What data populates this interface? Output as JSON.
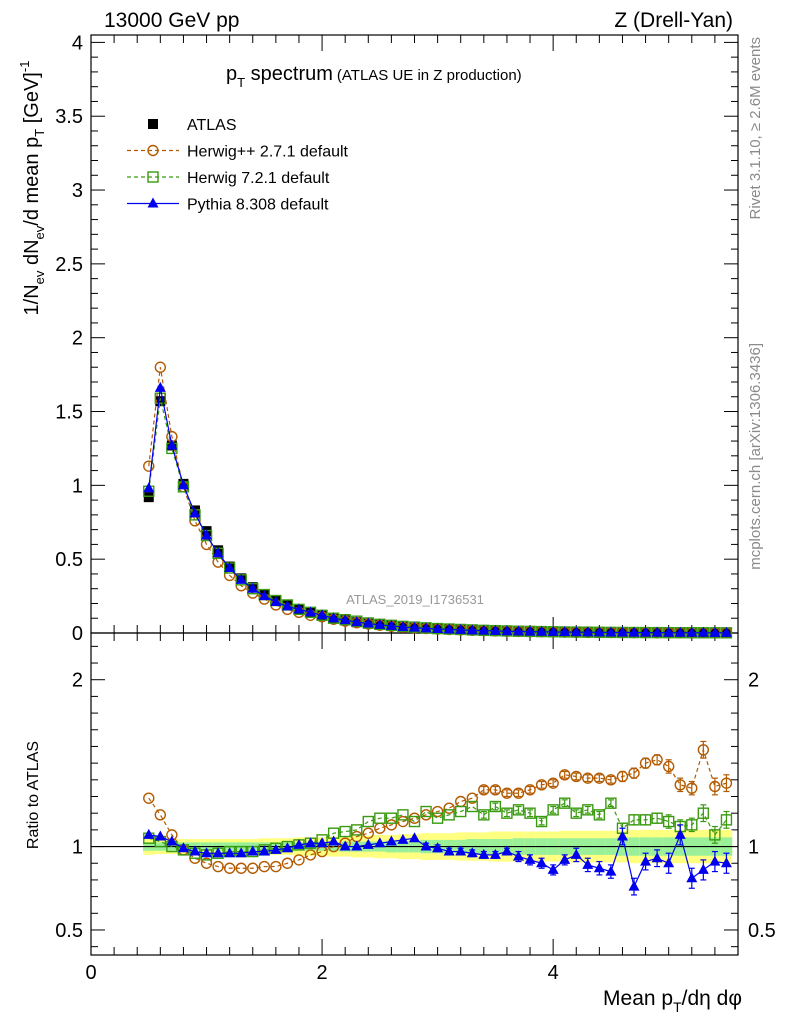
{
  "header": {
    "left": "13000 GeV pp",
    "right": "Z (Drell-Yan)"
  },
  "plot_title": {
    "main_p": "p",
    "main_sub": "T",
    "main_rest": " spectrum",
    "paren": "(ATLAS UE in Z production)"
  },
  "side_labels": {
    "rivet": "Rivet 3.1.10, ≥ 2.6M events",
    "mcplots": "mcplots.cern.ch [arXiv:1306.3436]"
  },
  "analysis_id": "ATLAS_2019_I1736531",
  "axes": {
    "ylabel_main": "1/N_ev dN_ev/d mean p_T [GeV]^-1",
    "ylabel_ratio": "Ratio to ATLAS",
    "xlabel": "Mean p_T/dη dφ"
  },
  "chart_data": [
    {
      "type": "scatter",
      "panel": "main",
      "xlim": [
        0,
        5.6
      ],
      "ylim": [
        0,
        4.05
      ],
      "xticks": [
        0,
        2,
        4
      ],
      "yticks": [
        0,
        0.5,
        1,
        1.5,
        2,
        2.5,
        3,
        3.5,
        4
      ],
      "ytick_labels": [
        "0",
        "0.5",
        "1",
        "1.5",
        "2",
        "2.5",
        "3",
        "3.5",
        "4"
      ],
      "legend_position": "top-left",
      "x": [
        0.5,
        0.6,
        0.7,
        0.8,
        0.9,
        1.0,
        1.1,
        1.2,
        1.3,
        1.4,
        1.5,
        1.6,
        1.7,
        1.8,
        1.9,
        2.0,
        2.1,
        2.2,
        2.3,
        2.4,
        2.5,
        2.6,
        2.7,
        2.8,
        2.9,
        3.0,
        3.1,
        3.2,
        3.3,
        3.4,
        3.5,
        3.6,
        3.7,
        3.8,
        3.9,
        4.0,
        4.1,
        4.2,
        4.3,
        4.4,
        4.5,
        4.6,
        4.7,
        4.8,
        4.9,
        5.0,
        5.1,
        5.2,
        5.3,
        5.4,
        5.5
      ],
      "series": [
        {
          "name": "ATLAS",
          "color": "#000000",
          "marker": "square-filled",
          "values": [
            0.92,
            1.57,
            1.27,
            1.01,
            0.83,
            0.69,
            0.56,
            0.45,
            0.37,
            0.31,
            0.26,
            0.22,
            0.19,
            0.16,
            0.14,
            0.12,
            0.1,
            0.085,
            0.073,
            0.063,
            0.054,
            0.047,
            0.041,
            0.036,
            0.031,
            0.027,
            0.024,
            0.021,
            0.018,
            0.016,
            0.014,
            0.012,
            0.011,
            0.0095,
            0.0083,
            0.0073,
            0.0064,
            0.0056,
            0.0049,
            0.0043,
            0.0038,
            0.0033,
            0.0029,
            0.0026,
            0.0023,
            0.002,
            0.0018,
            0.0016,
            0.0014,
            0.0012,
            0.0011
          ]
        },
        {
          "name": "Herwig++ 2.7.1 default",
          "color": "#b35a00",
          "marker": "circle-open",
          "dash": "4,3",
          "values": [
            1.13,
            1.8,
            1.33,
            0.99,
            0.76,
            0.6,
            0.48,
            0.39,
            0.32,
            0.27,
            0.23,
            0.19,
            0.16,
            0.14,
            0.12,
            0.11,
            0.093,
            0.081,
            0.07,
            0.061,
            0.053,
            0.046,
            0.04,
            0.035,
            0.031,
            0.027,
            0.024,
            0.021,
            0.018,
            0.016,
            0.014,
            0.012,
            0.011,
            0.0095,
            0.0083,
            0.0073,
            0.0064,
            0.0056,
            0.0049,
            0.0043,
            0.0038,
            0.0033,
            0.0029,
            0.0026,
            0.0023,
            0.002,
            0.0018,
            0.0016,
            0.0014,
            0.0012,
            0.0011
          ]
        },
        {
          "name": "Herwig 7.2.1 default",
          "color": "#3a9a10",
          "marker": "square-open",
          "dash": "4,3",
          "values": [
            0.96,
            1.59,
            1.25,
            0.99,
            0.8,
            0.66,
            0.54,
            0.44,
            0.36,
            0.3,
            0.26,
            0.22,
            0.19,
            0.16,
            0.14,
            0.12,
            0.1,
            0.09,
            0.08,
            0.068,
            0.059,
            0.052,
            0.045,
            0.04,
            0.035,
            0.03,
            0.027,
            0.024,
            0.021,
            0.018,
            0.016,
            0.014,
            0.012,
            0.011,
            0.0095,
            0.0083,
            0.0073,
            0.0064,
            0.0056,
            0.0049,
            0.0043,
            0.0038,
            0.0033,
            0.0029,
            0.0026,
            0.0023,
            0.002,
            0.0018,
            0.0016,
            0.0014,
            0.0012
          ]
        },
        {
          "name": "Pythia 8.308 default",
          "color": "#0000ee",
          "marker": "triangle-filled",
          "values": [
            0.98,
            1.66,
            1.27,
            1.0,
            0.81,
            0.66,
            0.54,
            0.44,
            0.36,
            0.3,
            0.25,
            0.21,
            0.18,
            0.16,
            0.14,
            0.12,
            0.1,
            0.087,
            0.074,
            0.064,
            0.055,
            0.048,
            0.041,
            0.036,
            0.031,
            0.027,
            0.024,
            0.021,
            0.018,
            0.016,
            0.014,
            0.012,
            0.011,
            0.0095,
            0.0083,
            0.0073,
            0.0064,
            0.0056,
            0.0049,
            0.0043,
            0.0038,
            0.0033,
            0.0029,
            0.0026,
            0.0023,
            0.002,
            0.0018,
            0.0016,
            0.0014,
            0.0012,
            0.0011
          ]
        }
      ]
    },
    {
      "type": "scatter",
      "panel": "ratio",
      "xlim": [
        0,
        5.6
      ],
      "ylim": [
        0.35,
        2.28
      ],
      "xticks": [
        0,
        2,
        4
      ],
      "xtick_labels": [
        "0",
        "2",
        "4"
      ],
      "yticks": [
        0.5,
        1,
        2
      ],
      "ytick_labels": [
        "0.5",
        "1",
        "2"
      ],
      "reference_line": 1,
      "band_inner": [
        0.025,
        0.025,
        0.025,
        0.025,
        0.025,
        0.025,
        0.025,
        0.025,
        0.025,
        0.025,
        0.025,
        0.025,
        0.025,
        0.025,
        0.025,
        0.025,
        0.025,
        0.03,
        0.03,
        0.03,
        0.03,
        0.035,
        0.035,
        0.035,
        0.04,
        0.04,
        0.04,
        0.04,
        0.045,
        0.045,
        0.045,
        0.045,
        0.05,
        0.05,
        0.05,
        0.05,
        0.05,
        0.05,
        0.05,
        0.05,
        0.05,
        0.055,
        0.055,
        0.055,
        0.055,
        0.055,
        0.055,
        0.055,
        0.055,
        0.055,
        0.055
      ],
      "band_outer": [
        0.05,
        0.045,
        0.045,
        0.045,
        0.045,
        0.045,
        0.045,
        0.045,
        0.045,
        0.045,
        0.05,
        0.05,
        0.05,
        0.055,
        0.055,
        0.055,
        0.06,
        0.06,
        0.065,
        0.065,
        0.07,
        0.07,
        0.075,
        0.075,
        0.08,
        0.08,
        0.08,
        0.085,
        0.085,
        0.085,
        0.09,
        0.09,
        0.09,
        0.09,
        0.09,
        0.09,
        0.095,
        0.095,
        0.095,
        0.095,
        0.095,
        0.095,
        0.1,
        0.1,
        0.1,
        0.1,
        0.1,
        0.1,
        0.1,
        0.1,
        0.1
      ],
      "x": [
        0.5,
        0.6,
        0.7,
        0.8,
        0.9,
        1.0,
        1.1,
        1.2,
        1.3,
        1.4,
        1.5,
        1.6,
        1.7,
        1.8,
        1.9,
        2.0,
        2.1,
        2.2,
        2.3,
        2.4,
        2.5,
        2.6,
        2.7,
        2.8,
        2.9,
        3.0,
        3.1,
        3.2,
        3.3,
        3.4,
        3.5,
        3.6,
        3.7,
        3.8,
        3.9,
        4.0,
        4.1,
        4.2,
        4.3,
        4.4,
        4.5,
        4.6,
        4.7,
        4.8,
        4.9,
        5.0,
        5.1,
        5.2,
        5.3,
        5.4,
        5.5
      ],
      "series": [
        {
          "name": "Herwig++ 2.7.1 default",
          "color": "#b35a00",
          "marker": "circle-open",
          "dash": "4,3",
          "values": [
            1.29,
            1.19,
            1.07,
            0.98,
            0.93,
            0.9,
            0.88,
            0.87,
            0.87,
            0.87,
            0.88,
            0.88,
            0.9,
            0.92,
            0.95,
            0.97,
            1.0,
            1.02,
            1.06,
            1.08,
            1.11,
            1.13,
            1.15,
            1.17,
            1.19,
            1.21,
            1.23,
            1.27,
            1.29,
            1.34,
            1.34,
            1.32,
            1.32,
            1.34,
            1.37,
            1.38,
            1.43,
            1.42,
            1.41,
            1.41,
            1.4,
            1.42,
            1.44,
            1.5,
            1.52,
            1.48,
            1.37,
            1.35,
            1.58,
            1.36,
            1.38
          ],
          "errors": [
            0.01,
            0.01,
            0.01,
            0.01,
            0.01,
            0.01,
            0.01,
            0.01,
            0.01,
            0.01,
            0.01,
            0.01,
            0.01,
            0.01,
            0.01,
            0.01,
            0.01,
            0.01,
            0.01,
            0.01,
            0.01,
            0.01,
            0.01,
            0.01,
            0.01,
            0.01,
            0.01,
            0.01,
            0.01,
            0.02,
            0.02,
            0.02,
            0.02,
            0.02,
            0.02,
            0.02,
            0.02,
            0.02,
            0.02,
            0.02,
            0.02,
            0.03,
            0.03,
            0.03,
            0.03,
            0.04,
            0.04,
            0.04,
            0.05,
            0.05,
            0.05
          ]
        },
        {
          "name": "Herwig 7.2.1 default",
          "color": "#3a9a10",
          "marker": "square-open",
          "dash": "4,3",
          "values": [
            1.05,
            1.03,
            1.0,
            0.98,
            0.96,
            0.95,
            0.96,
            0.97,
            0.97,
            0.97,
            0.98,
            0.99,
            1.0,
            1.01,
            1.02,
            1.04,
            1.08,
            1.09,
            1.1,
            1.15,
            1.17,
            1.17,
            1.19,
            1.15,
            1.21,
            1.17,
            1.19,
            1.21,
            1.24,
            1.19,
            1.24,
            1.2,
            1.22,
            1.2,
            1.15,
            1.22,
            1.26,
            1.2,
            1.22,
            1.19,
            1.26,
            1.11,
            1.16,
            1.16,
            1.17,
            1.15,
            1.12,
            1.13,
            1.2,
            1.07,
            1.16
          ],
          "errors": [
            0.01,
            0.01,
            0.01,
            0.01,
            0.01,
            0.01,
            0.01,
            0.01,
            0.01,
            0.01,
            0.01,
            0.01,
            0.01,
            0.01,
            0.01,
            0.01,
            0.01,
            0.01,
            0.01,
            0.01,
            0.01,
            0.01,
            0.01,
            0.01,
            0.01,
            0.01,
            0.01,
            0.01,
            0.01,
            0.02,
            0.02,
            0.02,
            0.02,
            0.02,
            0.02,
            0.02,
            0.02,
            0.02,
            0.02,
            0.02,
            0.02,
            0.03,
            0.03,
            0.03,
            0.03,
            0.04,
            0.04,
            0.04,
            0.05,
            0.05,
            0.05
          ]
        },
        {
          "name": "Pythia 8.308 default",
          "color": "#0000ee",
          "marker": "triangle-filled",
          "values": [
            1.07,
            1.06,
            1.03,
            0.99,
            0.97,
            0.96,
            0.96,
            0.96,
            0.96,
            0.97,
            0.97,
            0.98,
            0.99,
            1.01,
            1.02,
            1.02,
            1.03,
            1.0,
            1.0,
            1.01,
            1.02,
            1.03,
            1.04,
            1.05,
            1.0,
            0.99,
            0.97,
            0.97,
            0.96,
            0.95,
            0.95,
            0.97,
            0.94,
            0.92,
            0.9,
            0.86,
            0.92,
            0.95,
            0.89,
            0.87,
            0.85,
            1.06,
            0.76,
            0.91,
            0.93,
            0.9,
            1.07,
            0.81,
            0.86,
            0.91,
            0.9
          ],
          "errors": [
            0.01,
            0.01,
            0.01,
            0.01,
            0.01,
            0.01,
            0.01,
            0.01,
            0.01,
            0.01,
            0.01,
            0.01,
            0.01,
            0.01,
            0.01,
            0.01,
            0.01,
            0.01,
            0.01,
            0.01,
            0.01,
            0.01,
            0.01,
            0.01,
            0.02,
            0.02,
            0.02,
            0.02,
            0.02,
            0.02,
            0.02,
            0.02,
            0.03,
            0.03,
            0.03,
            0.03,
            0.03,
            0.04,
            0.04,
            0.04,
            0.04,
            0.05,
            0.05,
            0.05,
            0.05,
            0.06,
            0.06,
            0.06,
            0.06,
            0.06,
            0.06
          ]
        }
      ]
    }
  ]
}
